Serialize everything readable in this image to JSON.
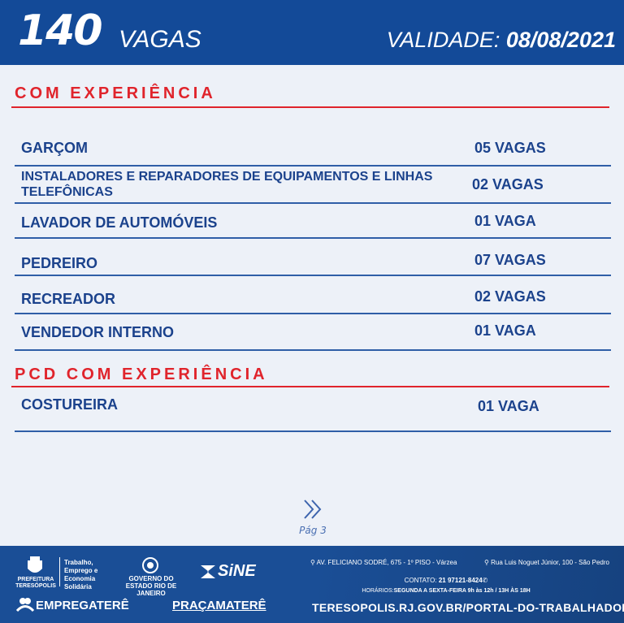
{
  "header": {
    "count": "140",
    "count_label": "VAGAS",
    "validity_label": "VALIDADE:",
    "validity_date": "08/08/2021"
  },
  "sections": [
    {
      "title": "COM EXPERIÊNCIA",
      "jobs": [
        {
          "name": "GARÇOM",
          "count": "05 VAGAS"
        },
        {
          "name": "INSTALADORES E REPARADORES DE EQUIPAMENTOS E LINHAS TELEFÔNICAS",
          "count": "02 VAGAS"
        },
        {
          "name": "LAVADOR DE AUTOMÓVEIS",
          "count": "01 VAGA"
        },
        {
          "name": "PEDREIRO",
          "count": "07 VAGAS"
        },
        {
          "name": "RECREADOR",
          "count": "02 VAGAS"
        },
        {
          "name": "VENDEDOR INTERNO",
          "count": "01 VAGA"
        }
      ]
    },
    {
      "title": "PCD COM EXPERIÊNCIA",
      "jobs": [
        {
          "name": "COSTUREIRA",
          "count": "01 VAGA"
        }
      ]
    }
  ],
  "nav": {
    "next_icon": "double-chevron-right-icon",
    "page": "Pág 3"
  },
  "footer": {
    "logo_prefeitura": "PREFEITURA TERESÓPOLIS",
    "secretaria": "Trabalho, Emprego e Economia Solidária",
    "logo_rj": "GOVERNO DO ESTADO RIO DE JANEIRO",
    "logo_sine": "SiNE",
    "logo_empregatere": "EMPREGATERÊ",
    "logo_pracamatere": "PRAÇAMATERÊ",
    "address1": "AV. FELICIANO SODRÉ, 675 - 1º PISO - Várzea",
    "address2": "Rua Luis Noguet Júnior, 100 - São Pedro",
    "contact_label": "CONTATO:",
    "contact": "21 97121-8424",
    "hours_label": "HORÁRIOS:",
    "hours": "SEGUNDA A SEXTA-FEIRA  9h às 12h / 13H ÀS 18H",
    "url": "TERESOPOLIS.RJ.GOV.BR/PORTAL-DO-TRABALHADOR"
  },
  "colors": {
    "header": "#134a98",
    "accent_red": "#e0242c",
    "text_blue": "#1b428c",
    "background": "#edf1f8"
  }
}
